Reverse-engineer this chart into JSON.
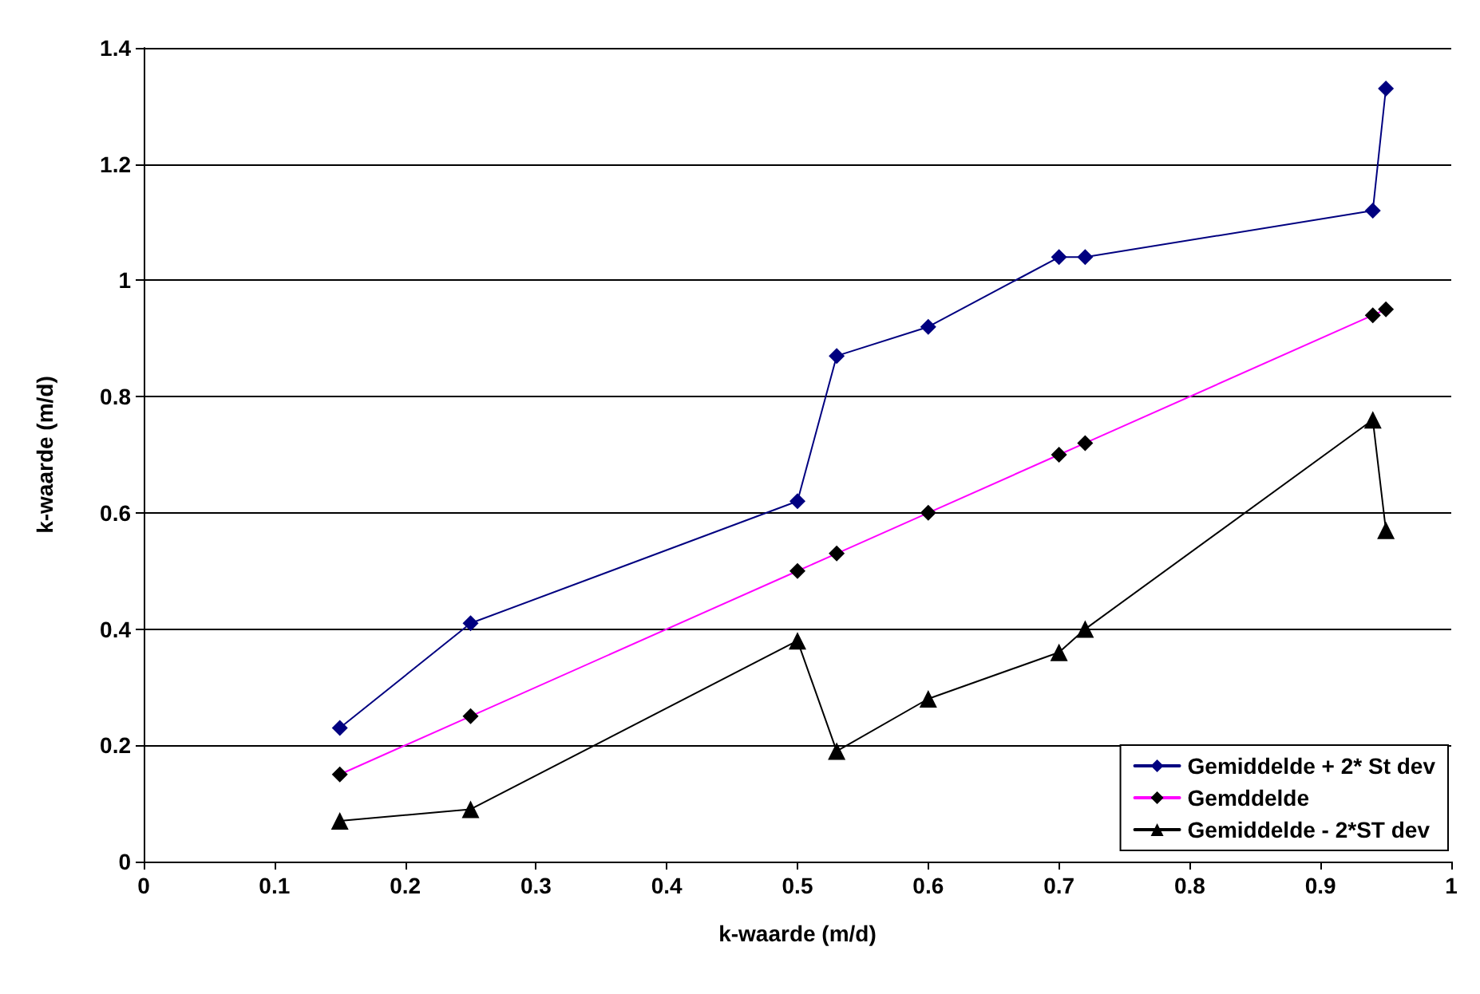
{
  "chart_data": {
    "type": "line",
    "xlabel": "k-waarde (m/d)",
    "ylabel": "k-waarde (m/d)",
    "x": [
      0.15,
      0.25,
      0.5,
      0.53,
      0.6,
      0.7,
      0.72,
      0.94,
      0.95
    ],
    "series": [
      {
        "name": "Gemiddelde + 2* St dev",
        "color": "#000080",
        "marker": "diamond",
        "values": [
          0.23,
          0.41,
          0.62,
          0.87,
          0.92,
          1.04,
          1.04,
          1.12,
          1.33
        ]
      },
      {
        "name": "Gemddelde",
        "color": "#ff00ff",
        "colors": [
          "#000000",
          "#000000",
          "#000000",
          "#000000",
          "#000000",
          "#000000",
          "#000000",
          "#000000",
          "#000000"
        ],
        "marker": "diamond",
        "values": [
          0.15,
          0.25,
          0.5,
          0.53,
          0.6,
          0.7,
          0.72,
          0.94,
          0.95
        ]
      },
      {
        "name": "Gemiddelde - 2*ST dev",
        "color": "#000000",
        "marker": "triangle",
        "values": [
          0.07,
          0.09,
          0.38,
          0.19,
          0.28,
          0.36,
          0.4,
          0.76,
          0.57
        ]
      }
    ],
    "xlim": [
      0,
      1
    ],
    "xticks": [
      0,
      0.1,
      0.2,
      0.3,
      0.4,
      0.5,
      0.6,
      0.7,
      0.8,
      0.9,
      1
    ],
    "ylim": [
      0,
      1.4
    ],
    "yticks": [
      0,
      0.2,
      0.4,
      0.6,
      0.8,
      1,
      1.2,
      1.4
    ],
    "grid": "y",
    "legend": "bottom right",
    "line_style": "solid"
  }
}
